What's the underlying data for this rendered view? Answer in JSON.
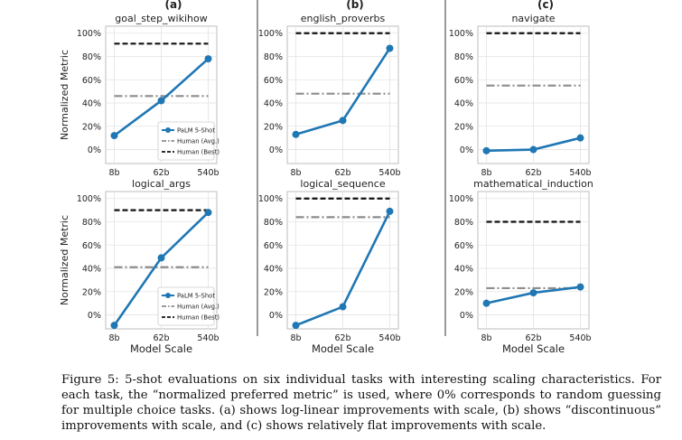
{
  "chart_data": {
    "type": "line",
    "x_categories": [
      "8b",
      "62b",
      "540b"
    ],
    "y_ticks": [
      "100%",
      "80%",
      "60%",
      "40%",
      "20%",
      "0%"
    ],
    "ylim": [
      -0.12,
      1.06
    ],
    "ylabel": "Normalized Metric",
    "xlabel": "Model Scale",
    "column_labels": [
      "(a)",
      "(b)",
      "(c)"
    ],
    "legend": {
      "palm": "PaLM 5-Shot",
      "human_avg": "Human (Avg.)",
      "human_best": "Human (Best)"
    },
    "colors": {
      "palm": "#1f77b4",
      "human_avg": "#8c8c8c",
      "human_best": "#111111"
    },
    "panels": [
      {
        "title": "goal_step_wikihow",
        "palm": [
          0.12,
          0.42,
          0.78
        ],
        "human_avg": 0.46,
        "human_best": 0.91,
        "legend": true
      },
      {
        "title": "english_proverbs",
        "palm": [
          0.13,
          0.25,
          0.87
        ],
        "human_avg": 0.48,
        "human_best": 1.0,
        "legend": false
      },
      {
        "title": "navigate",
        "palm": [
          -0.01,
          0.0,
          0.1
        ],
        "human_avg": 0.55,
        "human_best": 1.0,
        "legend": false
      },
      {
        "title": "logical_args",
        "palm": [
          -0.09,
          0.49,
          0.88
        ],
        "human_avg": 0.41,
        "human_best": 0.9,
        "legend": true
      },
      {
        "title": "logical_sequence",
        "palm": [
          -0.09,
          0.07,
          0.89
        ],
        "human_avg": 0.84,
        "human_best": 1.0,
        "legend": false
      },
      {
        "title": "mathematical_induction",
        "palm": [
          0.1,
          0.19,
          0.24
        ],
        "human_avg": 0.23,
        "human_best": 0.8,
        "legend": false
      }
    ]
  },
  "caption": "Figure 5: 5-shot evaluations on six individual tasks with interesting scaling characteristics. For each task, the “normalized preferred metric” is used, where 0% corresponds to random guessing for multiple choice tasks. (a) shows log-linear improvements with scale, (b) shows “discontinuous” improvements with scale, and (c) shows relatively flat improvements with scale."
}
